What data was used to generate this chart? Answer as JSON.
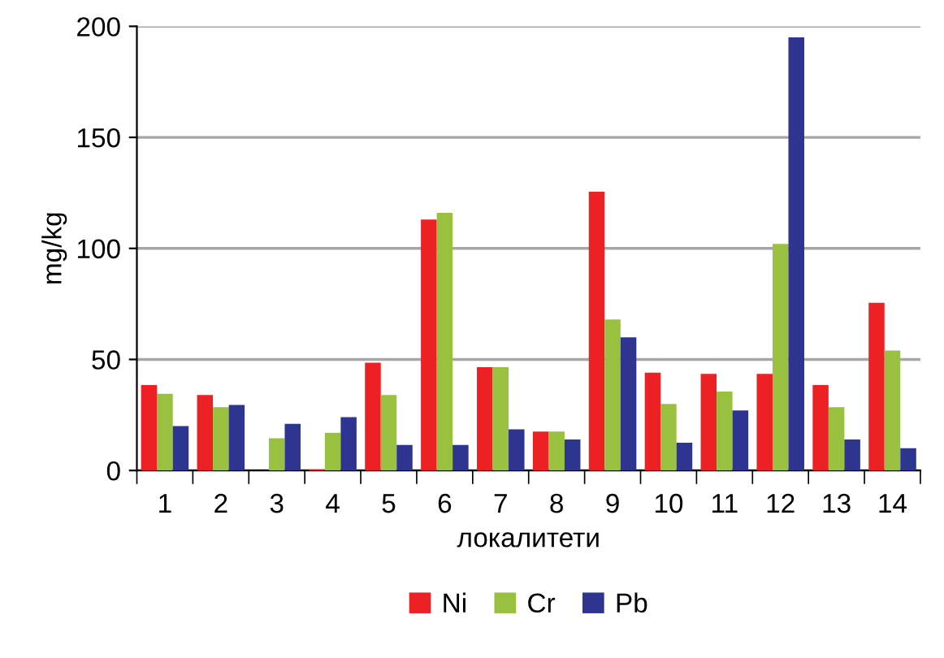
{
  "chart_data": {
    "type": "bar",
    "xlabel": "локалитети",
    "ylabel": "mg/kg",
    "categories": [
      "1",
      "2",
      "3",
      "4",
      "5",
      "6",
      "7",
      "8",
      "9",
      "10",
      "11",
      "12",
      "13",
      "14"
    ],
    "series": [
      {
        "name": "Ni",
        "color": "#ed2024",
        "values": [
          38.5,
          34,
          0,
          0.5,
          48.5,
          113,
          46.5,
          17.5,
          125.5,
          44,
          43.5,
          43.5,
          38.5,
          75.5
        ]
      },
      {
        "name": "Cr",
        "color": "#99c13f",
        "values": [
          34.5,
          28.5,
          14.5,
          17,
          34,
          116,
          46.5,
          17.5,
          68,
          30,
          35.5,
          102,
          28.5,
          54
        ]
      },
      {
        "name": "Pb",
        "color": "#2e3591",
        "values": [
          20,
          29.5,
          21,
          24,
          11.5,
          11.5,
          18.5,
          14,
          60,
          12.5,
          27,
          195,
          14,
          10
        ]
      }
    ],
    "ylim": [
      0,
      200
    ],
    "yticks": [
      0,
      50,
      100,
      150,
      200
    ],
    "grid": "y",
    "legend": "bottom"
  }
}
